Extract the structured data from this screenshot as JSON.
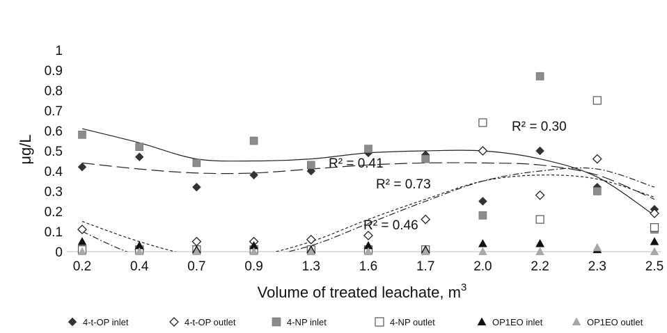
{
  "chart_data": {
    "type": "scatter",
    "title": "",
    "xlabel": "Volume of treated leachate, m",
    "xlabel_superscript": "3",
    "ylabel": "μg/L",
    "categories": [
      "0.2",
      "0.4",
      "0.7",
      "0.9",
      "1.3",
      "1.6",
      "1.7",
      "2.0",
      "2.2",
      "2.3",
      "2.5"
    ],
    "yticks": [
      "0",
      "0.1",
      "0.2",
      "0.3",
      "0.4",
      "0.5",
      "0.6",
      "0.7",
      "0.8",
      "0.9",
      "1"
    ],
    "ylim": [
      0,
      1
    ],
    "grid": false,
    "legend_position": "bottom",
    "series": [
      {
        "name": "4-t-OP inlet",
        "marker": "diamond-filled",
        "color": "#333333",
        "values": [
          0.42,
          0.47,
          0.32,
          0.38,
          0.4,
          0.49,
          0.48,
          0.25,
          0.5,
          0.32,
          0.21
        ]
      },
      {
        "name": "4-t-OP outlet",
        "marker": "diamond-open",
        "color": "#222222",
        "values": [
          0.11,
          0.01,
          0.05,
          0.05,
          0.06,
          0.08,
          0.16,
          0.5,
          0.28,
          0.46,
          0.19
        ]
      },
      {
        "name": "4-NP inlet",
        "marker": "square-filled",
        "color": "#8c8c8c",
        "values": [
          0.58,
          0.52,
          0.44,
          0.55,
          0.43,
          0.51,
          0.46,
          0.18,
          0.87,
          0.3,
          0.11
        ]
      },
      {
        "name": "4-NP outlet",
        "marker": "square-open",
        "color": "#555555",
        "values": [
          0.01,
          0.01,
          0.01,
          0.01,
          0.01,
          0.01,
          0.01,
          0.64,
          0.16,
          0.75,
          0.12
        ]
      },
      {
        "name": "OP1EO inlet",
        "marker": "triangle-filled",
        "color": "#111111",
        "values": [
          0.05,
          0.03,
          0.01,
          0.03,
          0.01,
          0.03,
          0.01,
          0.04,
          0.04,
          0.01,
          0.05
        ]
      },
      {
        "name": "OP1EO outlet",
        "marker": "triangle-filled",
        "color": "#a8a8a8",
        "values": [
          0.0,
          0.0,
          0.0,
          0.0,
          0.0,
          0.0,
          0.0,
          0.0,
          0.0,
          0.02,
          0.0
        ]
      }
    ],
    "trendlines": [
      {
        "style": "solid",
        "y": [
          0.61,
          0.54,
          0.46,
          0.45,
          0.46,
          0.49,
          0.5,
          0.5,
          0.46,
          0.37,
          0.18
        ]
      },
      {
        "style": "long-dash",
        "y": [
          0.44,
          0.41,
          0.39,
          0.39,
          0.41,
          0.43,
          0.44,
          0.44,
          0.43,
          0.38,
          0.26
        ]
      },
      {
        "style": "short-dash",
        "y": [
          0.15,
          0.05,
          -0.02,
          -0.02,
          0.05,
          0.16,
          0.26,
          0.35,
          0.38,
          0.36,
          0.27
        ]
      },
      {
        "style": "dash-dot",
        "y": [
          0.1,
          -0.02,
          -0.04,
          -0.03,
          0.03,
          0.14,
          0.25,
          0.35,
          0.4,
          0.41,
          0.32
        ]
      }
    ],
    "annotations": [
      {
        "text": "R² = 0.30"
      },
      {
        "text": "R² = 0.41"
      },
      {
        "text": "R² = 0.73"
      },
      {
        "text": "R² = 0.46"
      }
    ]
  }
}
